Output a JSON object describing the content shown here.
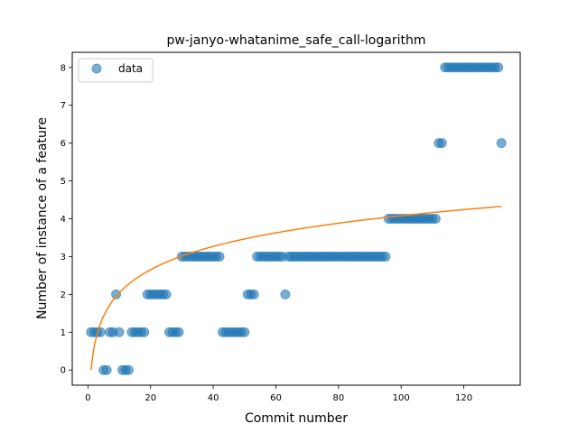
{
  "chart_data": {
    "type": "scatter",
    "title": "pw-janyo-whatanime_safe_call-logarithm",
    "xlabel": "Commit number",
    "ylabel": "Number of instance of a feature",
    "xlim": [
      -5,
      138
    ],
    "ylim": [
      -0.4,
      8.4
    ],
    "xticks": [
      0,
      20,
      40,
      60,
      80,
      100,
      120
    ],
    "yticks": [
      0,
      1,
      2,
      3,
      4,
      5,
      6,
      7,
      8
    ],
    "grid": false,
    "legend_position": "top-left",
    "series": [
      {
        "name": "data",
        "kind": "scatter",
        "color": "#1f77b4",
        "x": [
          1,
          2,
          3,
          4,
          5,
          6,
          7,
          8,
          9,
          10,
          11,
          12,
          13,
          14,
          15,
          16,
          17,
          18,
          19,
          20,
          21,
          22,
          23,
          24,
          25,
          26,
          27,
          28,
          29,
          30,
          31,
          32,
          33,
          34,
          35,
          36,
          37,
          38,
          39,
          40,
          41,
          42,
          43,
          44,
          45,
          46,
          47,
          48,
          49,
          50,
          51,
          52,
          53,
          54,
          55,
          56,
          57,
          58,
          59,
          60,
          61,
          62,
          63,
          64,
          65,
          66,
          67,
          68,
          69,
          70,
          71,
          72,
          73,
          74,
          75,
          76,
          77,
          78,
          79,
          80,
          81,
          82,
          83,
          84,
          85,
          86,
          87,
          88,
          89,
          90,
          91,
          92,
          93,
          94,
          95,
          96,
          97,
          98,
          99,
          100,
          101,
          102,
          103,
          104,
          105,
          106,
          107,
          108,
          109,
          110,
          111,
          112,
          113,
          114,
          115,
          116,
          117,
          118,
          119,
          120,
          121,
          122,
          123,
          124,
          125,
          126,
          127,
          128,
          129,
          130,
          131,
          132
        ],
        "y": [
          1,
          1,
          1,
          1,
          0,
          0,
          1,
          1,
          2,
          1,
          0,
          0,
          0,
          1,
          1,
          1,
          1,
          1,
          2,
          2,
          2,
          2,
          2,
          2,
          2,
          1,
          1,
          1,
          1,
          3,
          3,
          3,
          3,
          3,
          3,
          3,
          3,
          3,
          3,
          3,
          3,
          3,
          1,
          1,
          1,
          1,
          1,
          1,
          1,
          1,
          2,
          2,
          2,
          3,
          3,
          3,
          3,
          3,
          3,
          3,
          3,
          3,
          2,
          3,
          3,
          3,
          3,
          3,
          3,
          3,
          3,
          3,
          3,
          3,
          3,
          3,
          3,
          3,
          3,
          3,
          3,
          3,
          3,
          3,
          3,
          3,
          3,
          3,
          3,
          3,
          3,
          3,
          3,
          3,
          3,
          4,
          4,
          4,
          4,
          4,
          4,
          4,
          4,
          4,
          4,
          4,
          4,
          4,
          4,
          4,
          4,
          6,
          6,
          8,
          8,
          8,
          8,
          8,
          8,
          8,
          8,
          8,
          8,
          8,
          8,
          8,
          8,
          8,
          8,
          8,
          8,
          6
        ]
      },
      {
        "name": "",
        "kind": "fit",
        "color": "#ff7f0e",
        "x_range": [
          1,
          132
        ],
        "model": "logarithm",
        "a": 0.886,
        "b": 0.0
      }
    ]
  }
}
